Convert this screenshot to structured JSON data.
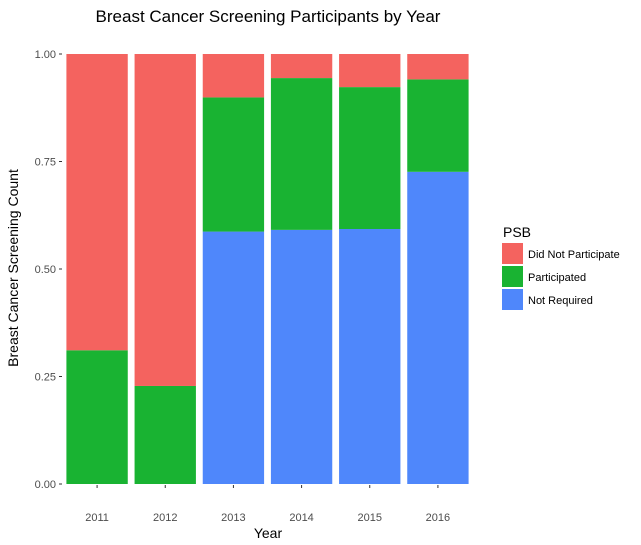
{
  "chart_data": {
    "type": "bar",
    "stacked": true,
    "title": "Breast Cancer Screening Participants by Year",
    "xlabel": "Year",
    "ylabel": "Breast Cancer Screening Count",
    "categories": [
      "2011",
      "2012",
      "2013",
      "2014",
      "2015",
      "2016"
    ],
    "ylim": [
      0,
      1
    ],
    "yticks": [
      "0.00",
      "0.25",
      "0.50",
      "0.75",
      "1.00"
    ],
    "ytick_values": [
      0,
      0.25,
      0.5,
      0.75,
      1.0
    ],
    "grid": false,
    "legend": {
      "title": "PSB",
      "placement": "right",
      "entries": [
        "Did Not Participate",
        "Participated",
        "Not Required"
      ]
    },
    "series": [
      {
        "name": "Not Required",
        "color": "#4f87fb",
        "values": [
          0,
          0,
          0.587,
          0.591,
          0.593,
          0.726
        ]
      },
      {
        "name": "Participated",
        "color": "#19b332",
        "values": [
          0.311,
          0.228,
          0.312,
          0.353,
          0.33,
          0.215
        ]
      },
      {
        "name": "Did Not Participate",
        "color": "#f4635f",
        "values": [
          0.689,
          0.772,
          0.101,
          0.056,
          0.077,
          0.059
        ]
      }
    ]
  }
}
